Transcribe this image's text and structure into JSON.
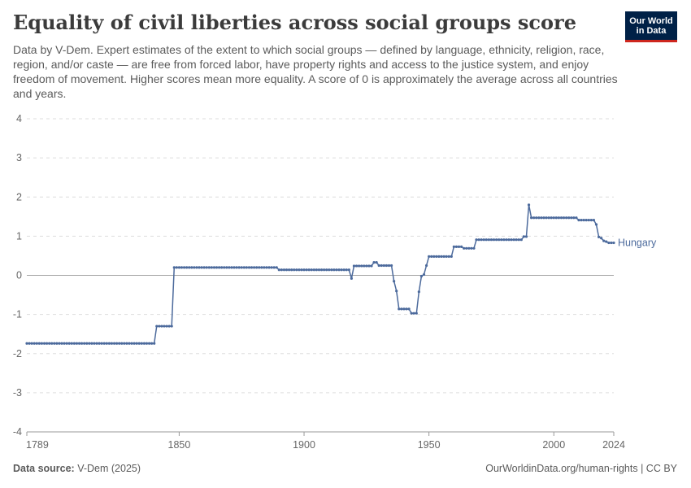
{
  "header": {
    "title": "Equality of civil liberties across social groups score",
    "subtitle": "Data by V-Dem. Expert estimates of the extent to which social groups — defined by language, ethnicity, religion, race, region, and/or caste — are free from forced labor, have property rights and access to the justice system, and enjoy freedom of movement. Higher scores mean more equality. A score of 0 is approximately the average across all countries and years.",
    "logo_text": "Our World in Data"
  },
  "footer": {
    "source_label": "Data source:",
    "source_value": "V-Dem (2025)",
    "url_license": "OurWorldinData.org/human-rights | CC BY"
  },
  "colors": {
    "series": "#4c6a9c",
    "grid": "#dddddd",
    "zero_line": "#a1a1a1",
    "logo_bg": "#002147",
    "logo_accent": "#ce261e"
  },
  "chart_data": {
    "type": "line",
    "title": "Equality of civil liberties across social groups score",
    "xlabel": "",
    "ylabel": "",
    "xlim": [
      1789,
      2024
    ],
    "ylim": [
      -4,
      4
    ],
    "x_ticks": [
      1789,
      1850,
      1900,
      1950,
      2000,
      2024
    ],
    "y_ticks": [
      -4,
      -3,
      -2,
      -1,
      0,
      1,
      2,
      3,
      4
    ],
    "grid": "horizontal dashed",
    "series": [
      {
        "name": "Hungary",
        "points": [
          [
            1789,
            -1.74
          ],
          [
            1840,
            -1.74
          ],
          [
            1841,
            -1.3
          ],
          [
            1847,
            -1.3
          ],
          [
            1848,
            0.2
          ],
          [
            1889,
            0.2
          ],
          [
            1890,
            0.14
          ],
          [
            1918,
            0.14
          ],
          [
            1919,
            -0.08
          ],
          [
            1920,
            0.24
          ],
          [
            1927,
            0.24
          ],
          [
            1928,
            0.33
          ],
          [
            1929,
            0.33
          ],
          [
            1930,
            0.25
          ],
          [
            1935,
            0.25
          ],
          [
            1936,
            -0.15
          ],
          [
            1937,
            -0.4
          ],
          [
            1938,
            -0.86
          ],
          [
            1942,
            -0.86
          ],
          [
            1943,
            -0.97
          ],
          [
            1945,
            -0.97
          ],
          [
            1946,
            -0.42
          ],
          [
            1947,
            -0.02
          ],
          [
            1948,
            0.02
          ],
          [
            1949,
            0.25
          ],
          [
            1950,
            0.48
          ],
          [
            1959,
            0.48
          ],
          [
            1960,
            0.73
          ],
          [
            1963,
            0.73
          ],
          [
            1964,
            0.69
          ],
          [
            1968,
            0.69
          ],
          [
            1969,
            0.91
          ],
          [
            1987,
            0.91
          ],
          [
            1988,
            0.99
          ],
          [
            1989,
            0.99
          ],
          [
            1990,
            1.8
          ],
          [
            1991,
            1.47
          ],
          [
            2009,
            1.47
          ],
          [
            2010,
            1.41
          ],
          [
            2016,
            1.41
          ],
          [
            2017,
            1.3
          ],
          [
            2018,
            0.98
          ],
          [
            2019,
            0.95
          ],
          [
            2020,
            0.88
          ],
          [
            2021,
            0.86
          ],
          [
            2022,
            0.83
          ],
          [
            2024,
            0.83
          ]
        ]
      }
    ]
  }
}
